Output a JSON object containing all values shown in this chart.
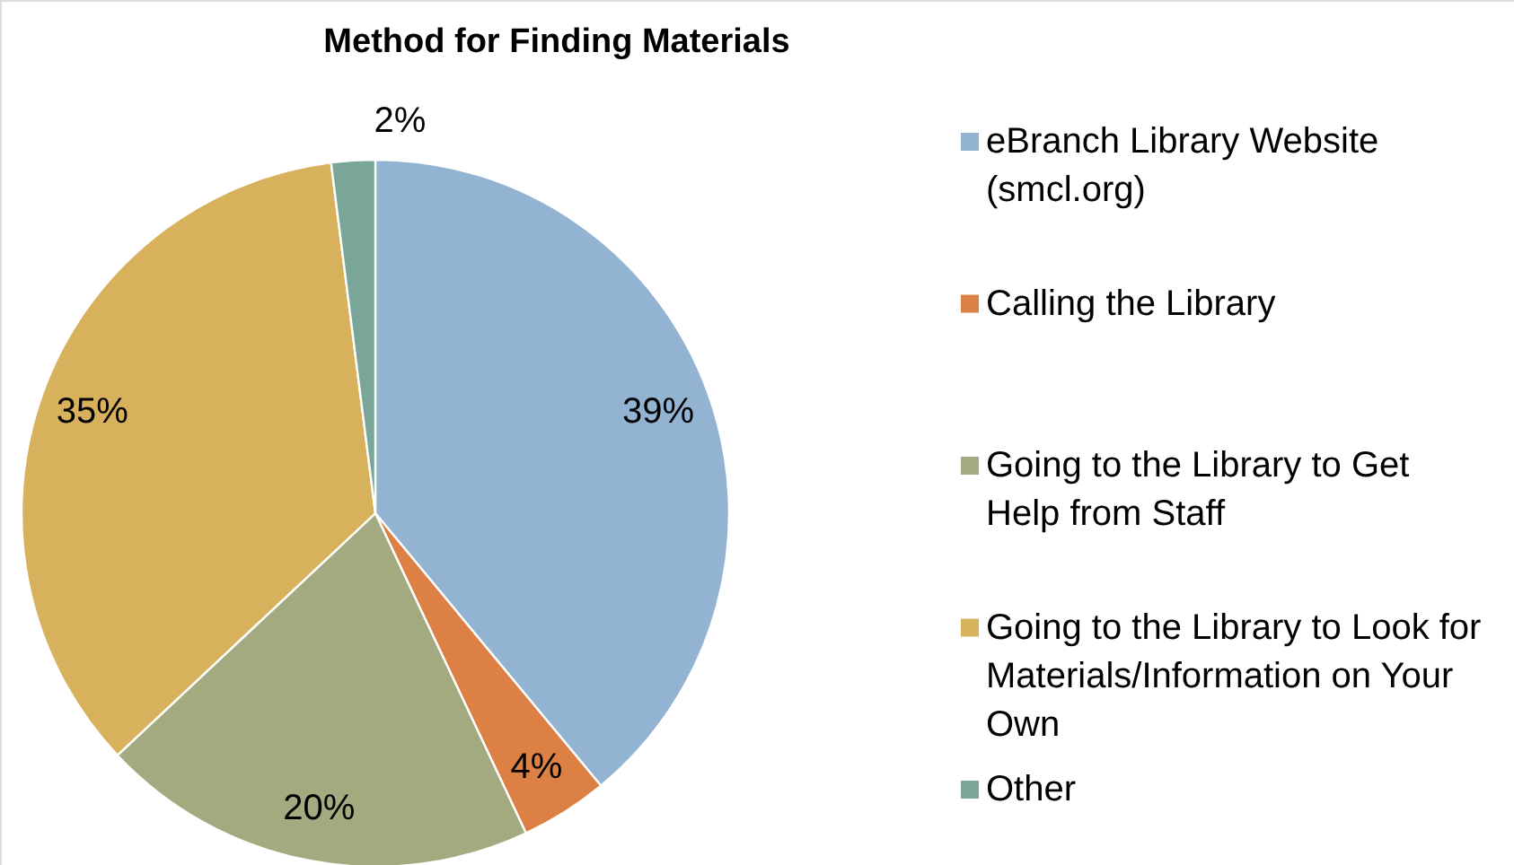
{
  "chart_data": {
    "type": "pie",
    "title": "Method for Finding Materials",
    "categories": [
      "eBranch Library Website (smcl.org)",
      "Calling the Library",
      "Going to the Library to Get Help from Staff",
      "Going to the Library to Look for Materials/Information on Your Own",
      "Other"
    ],
    "values": [
      39,
      4,
      20,
      35,
      2
    ],
    "colors": [
      "#93b3d2",
      "#dc8045",
      "#a4aa7f",
      "#d8b15c",
      "#7aa69a"
    ],
    "value_labels": [
      "39%",
      "4%",
      "20%",
      "35%",
      "2%"
    ],
    "legend": "right"
  }
}
